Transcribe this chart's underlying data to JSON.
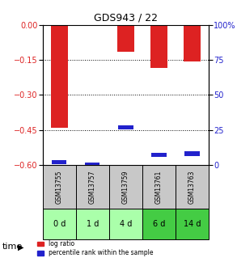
{
  "title": "GDS943 / 22",
  "samples": [
    "GSM13755",
    "GSM13757",
    "GSM13759",
    "GSM13761",
    "GSM13763"
  ],
  "time_labels": [
    "0 d",
    "1 d",
    "4 d",
    "6 d",
    "14 d"
  ],
  "log_ratio": [
    -0.44,
    0.0,
    -0.115,
    -0.185,
    -0.155
  ],
  "percentile_rank": [
    2,
    0,
    27,
    7,
    8
  ],
  "ylim_left": [
    -0.6,
    0.0
  ],
  "ylim_right": [
    0,
    100
  ],
  "yticks_left": [
    -0.6,
    -0.45,
    -0.3,
    -0.15,
    0.0
  ],
  "yticks_right": [
    0,
    25,
    50,
    75,
    100
  ],
  "bar_width": 0.5,
  "red_color": "#dd2222",
  "blue_color": "#2222cc",
  "sample_bg": "#c8c8c8",
  "time_bg_light": "#aaffaa",
  "time_bg_dark": "#44cc44",
  "time_colors": [
    "#aaffaa",
    "#aaffaa",
    "#aaffaa",
    "#44cc44",
    "#44cc44"
  ],
  "legend_red": "log ratio",
  "legend_blue": "percentile rank within the sample"
}
